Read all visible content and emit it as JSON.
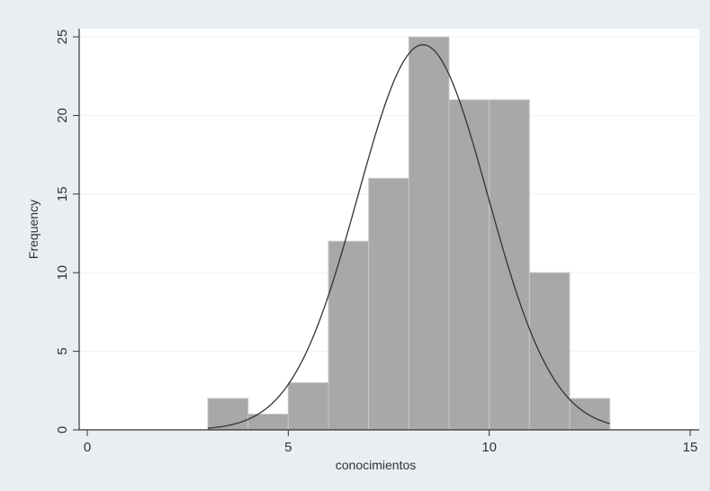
{
  "chart_data": {
    "type": "bar",
    "title": "",
    "xlabel": "conocimientos",
    "ylabel": "Frequency",
    "xlim": [
      0,
      15
    ],
    "ylim": [
      0,
      25
    ],
    "x_ticks": [
      0,
      5,
      10,
      15
    ],
    "y_ticks": [
      0,
      5,
      10,
      15,
      20,
      25
    ],
    "grid": true,
    "bins": [
      {
        "start": 3,
        "end": 4,
        "count": 2
      },
      {
        "start": 4,
        "end": 5,
        "count": 1
      },
      {
        "start": 5,
        "end": 6,
        "count": 3
      },
      {
        "start": 6,
        "end": 7,
        "count": 12
      },
      {
        "start": 7,
        "end": 8,
        "count": 16
      },
      {
        "start": 8,
        "end": 9,
        "count": 25
      },
      {
        "start": 9,
        "end": 10,
        "count": 21
      },
      {
        "start": 10,
        "end": 11,
        "count": 21
      },
      {
        "start": 11,
        "end": 12,
        "count": 10
      },
      {
        "start": 12,
        "end": 13,
        "count": 2
      }
    ],
    "normal_curve": {
      "mean": 8.35,
      "sd": 1.62,
      "peak": 24.5,
      "x_range": [
        3,
        13
      ]
    },
    "colors": {
      "bar_fill": "#a8a8a8",
      "bar_edge": "#c8c8c8",
      "curve": "#333333",
      "background": "#e9eef2",
      "plot_area": "#ffffff"
    }
  }
}
